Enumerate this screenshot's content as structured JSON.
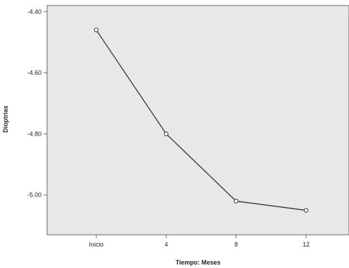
{
  "chart_data": {
    "type": "line",
    "title": "",
    "xlabel": "Tiempo: Meses",
    "ylabel": "Dioptrías",
    "categories": [
      "Inicio",
      "4",
      "8",
      "12"
    ],
    "series": [
      {
        "values": [
          -4.46,
          -4.8,
          -5.02,
          -5.05
        ]
      }
    ],
    "ylim": [
      -5.13,
      -4.38
    ],
    "yticks": [
      -4.4,
      -4.6,
      -4.8,
      -5.0
    ],
    "ytick_labels": [
      "-4.40",
      "-4.60",
      "-4.80",
      "-5.00"
    ],
    "grid": false,
    "legend": "none",
    "colors": {
      "plot_background": "#e8e8e8",
      "line": "#333333",
      "marker_fill": "#ffffff",
      "axis": "#666666"
    }
  }
}
